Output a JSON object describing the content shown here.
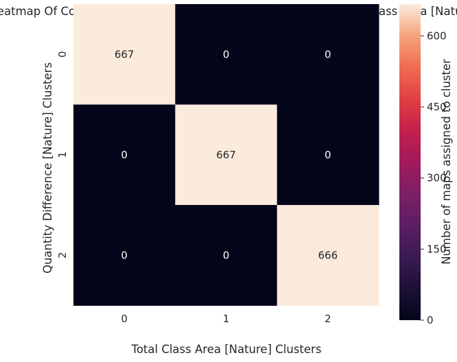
{
  "chart_data": {
    "type": "heatmap",
    "title": "Heatmap Of Confusion Matrix Quantity Difference [Nature] & Total Class Area [Nature]",
    "xlabel": "Total Class Area [Nature] Clusters",
    "ylabel": "Quantity Difference [Nature] Clusters",
    "x_categories": [
      "0",
      "1",
      "2"
    ],
    "y_categories": [
      "0",
      "1",
      "2"
    ],
    "values": [
      [
        667,
        0,
        0
      ],
      [
        0,
        667,
        0
      ],
      [
        0,
        0,
        666
      ]
    ],
    "colorbar": {
      "label": "Number of maps assigned to cluster",
      "range": [
        0,
        667
      ],
      "ticks": [
        0,
        150,
        300,
        450,
        600
      ],
      "colormap": "rocket"
    },
    "colors": {
      "low": "#03051a",
      "high": "#faebdd",
      "annotation_on_dark": "#ffffff",
      "annotation_on_light": "#262626"
    },
    "grid": false
  }
}
